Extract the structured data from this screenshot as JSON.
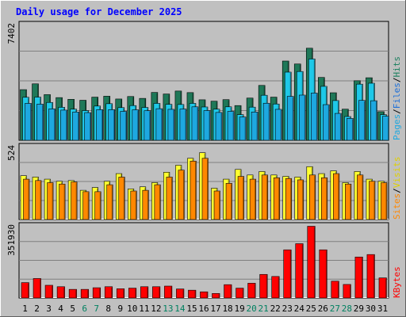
{
  "chart_data": [
    {
      "type": "bar",
      "title": "Daily usage for December 2025",
      "ylabel_parts": [
        "Pages",
        "/",
        "Files",
        "/",
        "Hits"
      ],
      "ymax_label": "7402",
      "ylim": [
        0,
        7402
      ],
      "categories": [
        "1",
        "2",
        "3",
        "4",
        "5",
        "6",
        "7",
        "8",
        "9",
        "10",
        "11",
        "12",
        "13",
        "14",
        "15",
        "16",
        "17",
        "18",
        "19",
        "20",
        "21",
        "22",
        "23",
        "24",
        "25",
        "26",
        "27",
        "28",
        "29",
        "30",
        "31"
      ],
      "weekend_days": [
        "6",
        "7",
        "13",
        "14",
        "20",
        "21",
        "27",
        "28"
      ],
      "series": [
        {
          "name": "Hits",
          "values": [
            3240,
            3610,
            2920,
            2730,
            2620,
            2560,
            2760,
            2820,
            2640,
            2800,
            2680,
            3060,
            2960,
            3150,
            3050,
            2590,
            2500,
            2600,
            2220,
            2700,
            3510,
            2760,
            5070,
            4880,
            5890,
            4020,
            3040,
            1990,
            3810,
            4000,
            1830
          ]
        },
        {
          "name": "Files",
          "values": [
            2750,
            2760,
            2420,
            2110,
            1990,
            1900,
            2190,
            2340,
            2090,
            2220,
            2100,
            2360,
            2300,
            2290,
            2360,
            2130,
            1990,
            2140,
            1640,
            2120,
            2880,
            2320,
            4360,
            4400,
            5200,
            3450,
            2540,
            1520,
            3590,
            3650,
            1640
          ]
        },
        {
          "name": "Pages",
          "values": [
            2360,
            2310,
            2010,
            1930,
            1810,
            1770,
            1960,
            1960,
            1850,
            1950,
            1890,
            2020,
            1980,
            2000,
            2140,
            1900,
            1780,
            1850,
            1490,
            1810,
            2370,
            1980,
            2810,
            2890,
            3020,
            2280,
            1720,
            1400,
            2550,
            2530,
            1540
          ]
        }
      ],
      "colors": {
        "Hits": "#1e7858",
        "Files": "#1ec8e8",
        "Pages": "#1ea8e0"
      }
    },
    {
      "type": "bar",
      "ylabel_parts": [
        "Sites",
        "/",
        "Visits"
      ],
      "ymax_label": "524",
      "ylim": [
        0,
        524
      ],
      "series": [
        {
          "name": "Visits",
          "values": [
            315,
            305,
            290,
            275,
            280,
            210,
            230,
            275,
            330,
            220,
            235,
            265,
            340,
            390,
            440,
            480,
            225,
            290,
            360,
            320,
            345,
            320,
            310,
            305,
            380,
            330,
            350,
            265,
            345,
            290,
            275
          ]
        },
        {
          "name": "Sites",
          "values": [
            290,
            280,
            265,
            255,
            270,
            200,
            200,
            250,
            305,
            205,
            210,
            250,
            305,
            355,
            420,
            440,
            205,
            260,
            310,
            290,
            320,
            300,
            295,
            285,
            320,
            300,
            330,
            255,
            320,
            275,
            265
          ]
        }
      ],
      "colors": {
        "Visits": "#ffff30",
        "Sites": "#ff8800"
      }
    },
    {
      "type": "bar",
      "ylabel_parts": [
        "KBytes"
      ],
      "ymax_label": "351930",
      "ylim": [
        0,
        351930
      ],
      "series": [
        {
          "name": "KBytes",
          "values": [
            75000,
            95000,
            62000,
            55000,
            42000,
            42000,
            50000,
            55000,
            45000,
            48000,
            55000,
            55000,
            58000,
            44000,
            38000,
            30000,
            22000,
            65000,
            48000,
            72000,
            115000,
            105000,
            235000,
            265000,
            350000,
            235000,
            82000,
            66000,
            200000,
            212000,
            98000
          ]
        }
      ],
      "colors": {
        "KBytes": "#ff0000"
      }
    }
  ],
  "colors": {
    "background": "#c0c0c0",
    "panel": "#c0c0c0",
    "title": "#0000ff",
    "grid": "#808080",
    "day_label": "#000000",
    "weekend_label": "#008060",
    "label_pages": "#1ea8e0",
    "label_files": "#1e70d8",
    "label_hits": "#1e8060",
    "label_sites": "#ff8800",
    "label_visits": "#e0d000",
    "label_kbytes": "#ff0000",
    "label_sep": "#000000"
  }
}
